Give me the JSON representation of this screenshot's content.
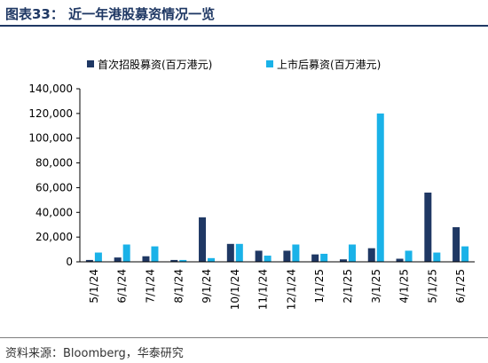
{
  "header": {
    "title": "图表33： 近一年港股募资情况一览"
  },
  "footer": {
    "source": "资料来源：Bloomberg，华泰研究"
  },
  "colors": {
    "ipo": "#1f3864",
    "followon": "#1ab2e8",
    "title": "#1f3864"
  },
  "chart_data": {
    "type": "bar",
    "title": "",
    "xlabel": "",
    "ylabel": "",
    "ylim": [
      0,
      140000
    ],
    "yticks": [
      0,
      20000,
      40000,
      60000,
      80000,
      100000,
      120000,
      140000
    ],
    "ytick_labels": [
      "0",
      "20,000",
      "40,000",
      "60,000",
      "80,000",
      "100,000",
      "120,000",
      "140,000"
    ],
    "categories": [
      "5/1/24",
      "6/1/24",
      "7/1/24",
      "8/1/24",
      "9/1/24",
      "10/1/24",
      "11/1/24",
      "12/1/24",
      "1/1/25",
      "2/1/25",
      "3/1/25",
      "4/1/25",
      "5/1/25",
      "6/1/25"
    ],
    "series": [
      {
        "name": "首次招股募资(百万港元)",
        "color": "#1f3864",
        "values": [
          1500,
          3500,
          4500,
          1500,
          36000,
          14500,
          9000,
          9000,
          6000,
          2000,
          11000,
          2500,
          56000,
          28000
        ]
      },
      {
        "name": "上市后募资(百万港元)",
        "color": "#1ab2e8",
        "values": [
          7500,
          14000,
          12500,
          1500,
          3000,
          14500,
          5000,
          14000,
          6500,
          14000,
          120000,
          9000,
          7500,
          12500
        ]
      }
    ],
    "legend": "top",
    "grid": false
  }
}
